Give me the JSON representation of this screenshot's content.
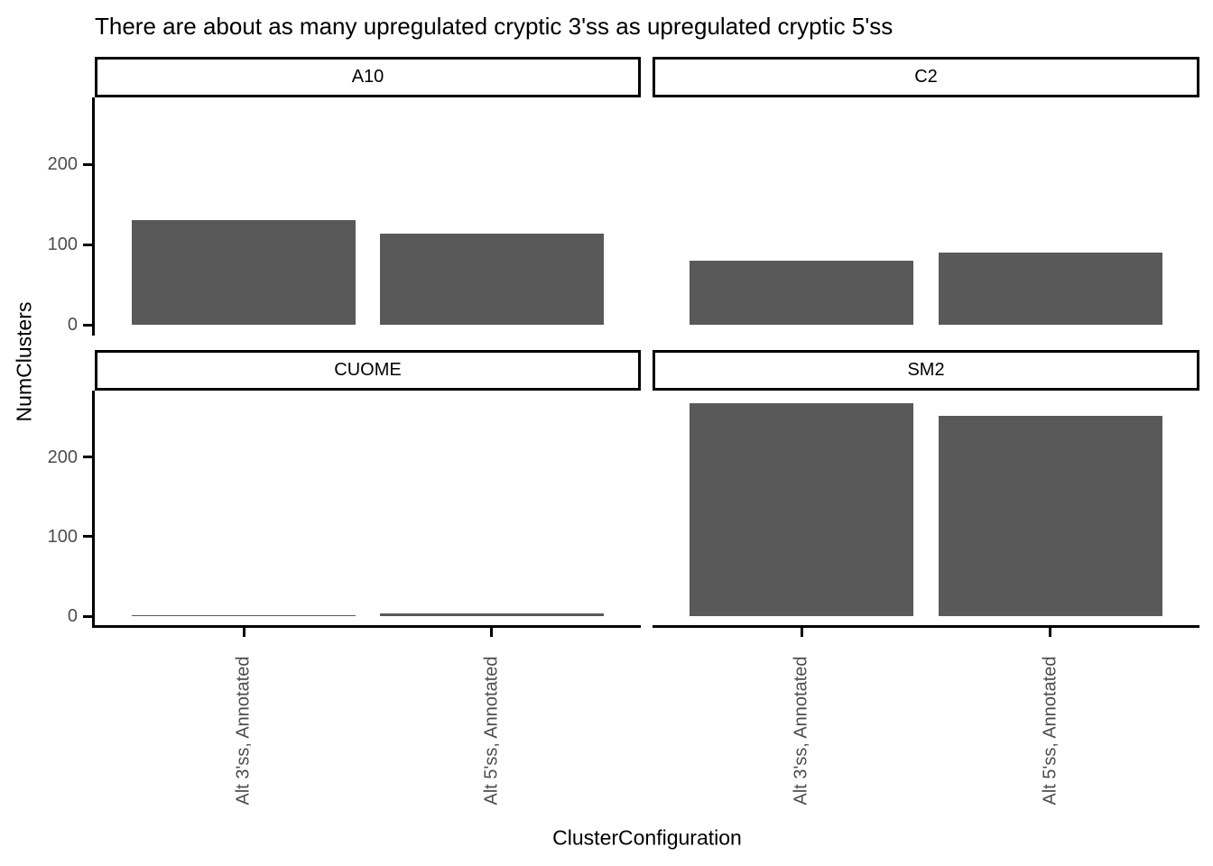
{
  "chart_data": {
    "type": "bar",
    "title": "There are about as many upregulated cryptic 3'ss as upregulated cryptic 5'ss",
    "xlabel": "ClusterConfiguration",
    "ylabel": "NumClusters",
    "categories": [
      "Alt 3'ss, Annotated",
      "Alt 5'ss, Annotated"
    ],
    "facets": [
      {
        "label": "A10",
        "values": [
          130,
          114
        ]
      },
      {
        "label": "C2",
        "values": [
          80,
          90
        ]
      },
      {
        "label": "CUOME",
        "values": [
          1,
          3
        ]
      },
      {
        "label": "SM2",
        "values": [
          268,
          252
        ]
      }
    ],
    "y_ticks": [
      0,
      100,
      200
    ],
    "ylim": [
      -13.5,
      283.5
    ],
    "grid": false,
    "legend": "none",
    "colors": {
      "bar_fill": "#595959",
      "axis_text": "#4D4D4D",
      "axis_line": "#000000",
      "strip_border": "#000000",
      "strip_bg": "#FFFFFF",
      "background": "#FFFFFF"
    }
  }
}
